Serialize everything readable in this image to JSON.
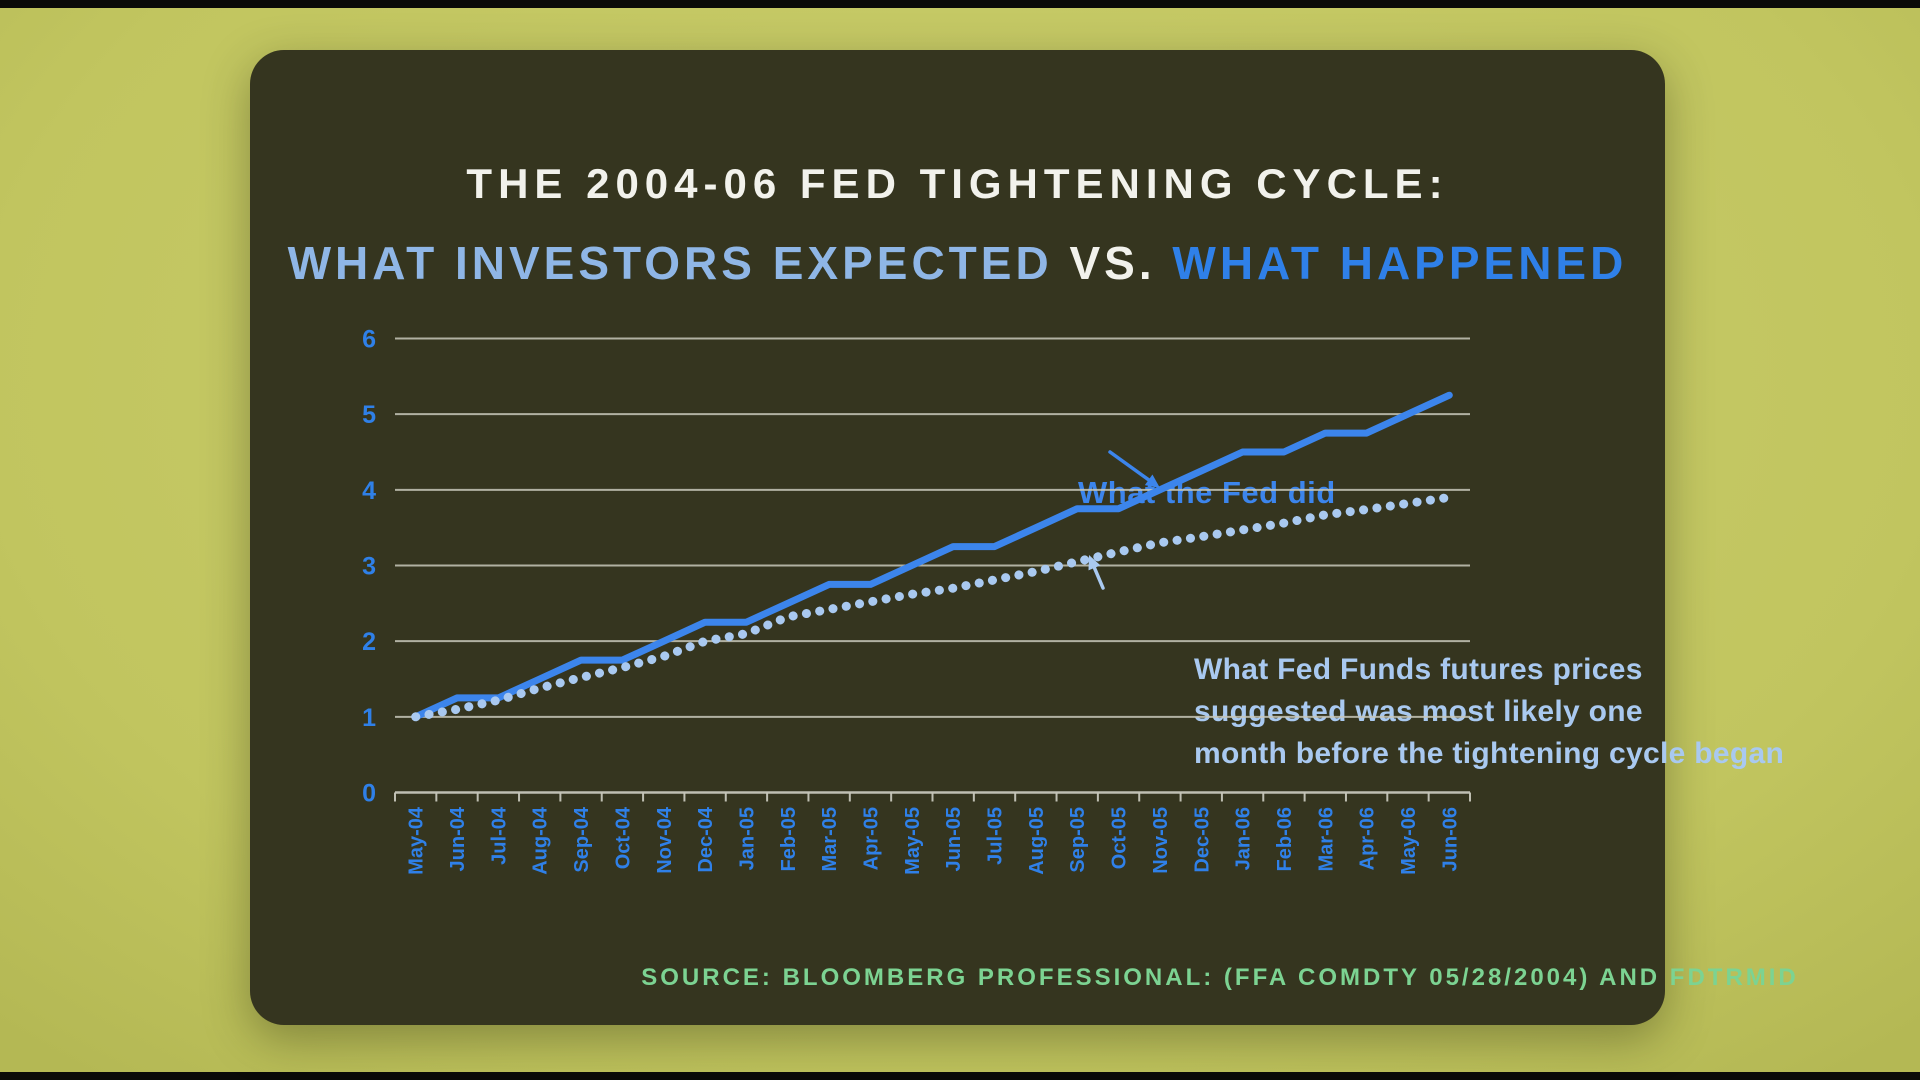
{
  "title": {
    "line1": "THE 2004-06 FED TIGHTENING CYCLE:",
    "line2_part1": "WHAT INVESTORS EXPECTED",
    "line2_part2": " VS. ",
    "line2_part3": "WHAT HAPPENED"
  },
  "annotations": {
    "fed_label": "What the Fed did",
    "futures_line1": "What Fed Funds futures prices",
    "futures_line2": "suggested was most likely one",
    "futures_line3": "month before the tightening cycle began"
  },
  "source": "SOURCE: BLOOMBERG PROFESSIONAL: (FFA COMDTY 05/28/2004) AND FDTRMID",
  "colors": {
    "bg": "#c1c55f",
    "bg_light": "#cbce6d",
    "bg_dark": "#b4b854",
    "letterbox": "#0a0a08",
    "card": "#35351f",
    "white": "#f2f2ec",
    "accent_blue": "#2f80e8",
    "line_blue": "#3c85ec",
    "periwinkle": "#a9c9f0",
    "periwinkle_title": "#8fb6e6",
    "grid": "#c7c7ba",
    "source_green": "#7cd392"
  },
  "chart_data": {
    "type": "line",
    "title": "The 2004-06 Fed tightening cycle: what investors expected vs. what happened",
    "categories": [
      "May-04",
      "Jun-04",
      "Jul-04",
      "Aug-04",
      "Sep-04",
      "Oct-04",
      "Nov-04",
      "Dec-04",
      "Jan-05",
      "Feb-05",
      "Mar-05",
      "Apr-05",
      "May-05",
      "Jun-05",
      "Jul-05",
      "Aug-05",
      "Sep-05",
      "Oct-05",
      "Nov-05",
      "Dec-05",
      "Jan-06",
      "Feb-06",
      "Mar-06",
      "Apr-06",
      "May-06",
      "Jun-06"
    ],
    "series": [
      {
        "name": "What the Fed did",
        "style": "solid",
        "color": "#3c85ec",
        "values": [
          1.0,
          1.25,
          1.25,
          1.5,
          1.75,
          1.75,
          2.0,
          2.25,
          2.25,
          2.5,
          2.75,
          2.75,
          3.0,
          3.25,
          3.25,
          3.5,
          3.75,
          3.75,
          4.0,
          4.25,
          4.5,
          4.5,
          4.75,
          4.75,
          5.0,
          5.25
        ]
      },
      {
        "name": "What Fed Funds futures prices suggested was most likely one month before the tightening cycle began",
        "style": "dotted",
        "color": "#a9c9f0",
        "values": [
          1.0,
          1.1,
          1.22,
          1.38,
          1.52,
          1.65,
          1.8,
          2.0,
          2.1,
          2.32,
          2.42,
          2.52,
          2.62,
          2.7,
          2.81,
          2.92,
          3.05,
          3.18,
          3.3,
          3.38,
          3.47,
          3.56,
          3.67,
          3.74,
          3.82,
          3.9
        ]
      }
    ],
    "ylim": [
      0,
      6
    ],
    "yticks": [
      0,
      1,
      2,
      3,
      4,
      5,
      6
    ],
    "xlabel": "",
    "ylabel": "",
    "grid": true,
    "legend_position": "inline-annotations"
  }
}
